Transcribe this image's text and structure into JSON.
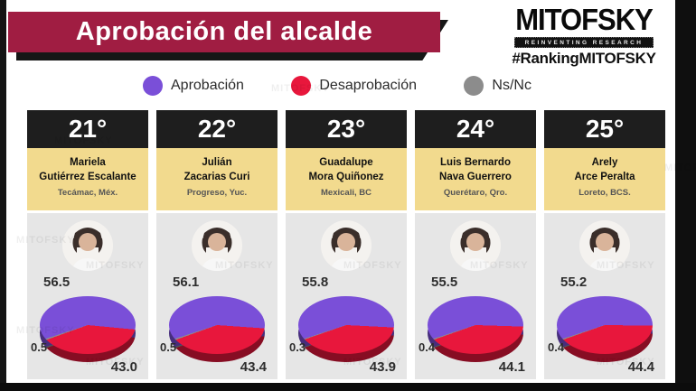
{
  "banner": {
    "title": "Aprobación del alcalde"
  },
  "brand": {
    "logo": "MITOFSKY",
    "tagline": "REINVENTING RESEARCH",
    "hashtag": "#RankingMITOFSKY",
    "watermark": "MITOFSKY"
  },
  "colors": {
    "banner": "#a01d42",
    "approval": "#7a4fd8",
    "disapproval": "#e8173c",
    "nsnc": "#8c8c8c",
    "card_header": "#1e1e1e",
    "card_name_bg": "#f2da8e",
    "card_body_bg": "#e6e6e6"
  },
  "legend": [
    {
      "label": "Aprobación",
      "color": "#7a4fd8"
    },
    {
      "label": "Desaprobación",
      "color": "#e8173c"
    },
    {
      "label": "Ns/Nc",
      "color": "#8c8c8c"
    }
  ],
  "cards": [
    {
      "rank": "21°",
      "name1": "Mariela",
      "name2": "Gutiérrez Escalante",
      "city": "Tecámac, Méx.",
      "approval": "56.5",
      "disapproval": "43.0",
      "nsnc": "0.5"
    },
    {
      "rank": "22°",
      "name1": "Julián",
      "name2": "Zacarias Curi",
      "city": "Progreso, Yuc.",
      "approval": "56.1",
      "disapproval": "43.4",
      "nsnc": "0.5"
    },
    {
      "rank": "23°",
      "name1": "Guadalupe",
      "name2": "Mora Quiñonez",
      "city": "Mexicali, BC",
      "approval": "55.8",
      "disapproval": "43.9",
      "nsnc": "0.3"
    },
    {
      "rank": "24°",
      "name1": "Luis Bernardo",
      "name2": "Nava Guerrero",
      "city": "Querétaro, Qro.",
      "approval": "55.5",
      "disapproval": "44.1",
      "nsnc": "0.4"
    },
    {
      "rank": "25°",
      "name1": "Arely",
      "name2": "Arce Peralta",
      "city": "Loreto, BCS.",
      "approval": "55.2",
      "disapproval": "44.4",
      "nsnc": "0.4"
    }
  ],
  "chart_data": [
    {
      "type": "pie",
      "title": "21° Mariela Gutiérrez Escalante — Tecámac, Méx.",
      "labels": [
        "Aprobación",
        "Desaprobación",
        "Ns/Nc"
      ],
      "values": [
        56.5,
        43.0,
        0.5
      ]
    },
    {
      "type": "pie",
      "title": "22° Julián Zacarias Curi — Progreso, Yuc.",
      "labels": [
        "Aprobación",
        "Desaprobación",
        "Ns/Nc"
      ],
      "values": [
        56.1,
        43.4,
        0.5
      ]
    },
    {
      "type": "pie",
      "title": "23° Guadalupe Mora Quiñonez — Mexicali, BC",
      "labels": [
        "Aprobación",
        "Desaprobación",
        "Ns/Nc"
      ],
      "values": [
        55.8,
        43.9,
        0.3
      ]
    },
    {
      "type": "pie",
      "title": "24° Luis Bernardo Nava Guerrero — Querétaro, Qro.",
      "labels": [
        "Aprobación",
        "Desaprobación",
        "Ns/Nc"
      ],
      "values": [
        55.5,
        44.1,
        0.4
      ]
    },
    {
      "type": "pie",
      "title": "25° Arely Arce Peralta — Loreto, BCS.",
      "labels": [
        "Aprobación",
        "Desaprobación",
        "Ns/Nc"
      ],
      "values": [
        55.2,
        44.4,
        0.4
      ]
    }
  ]
}
